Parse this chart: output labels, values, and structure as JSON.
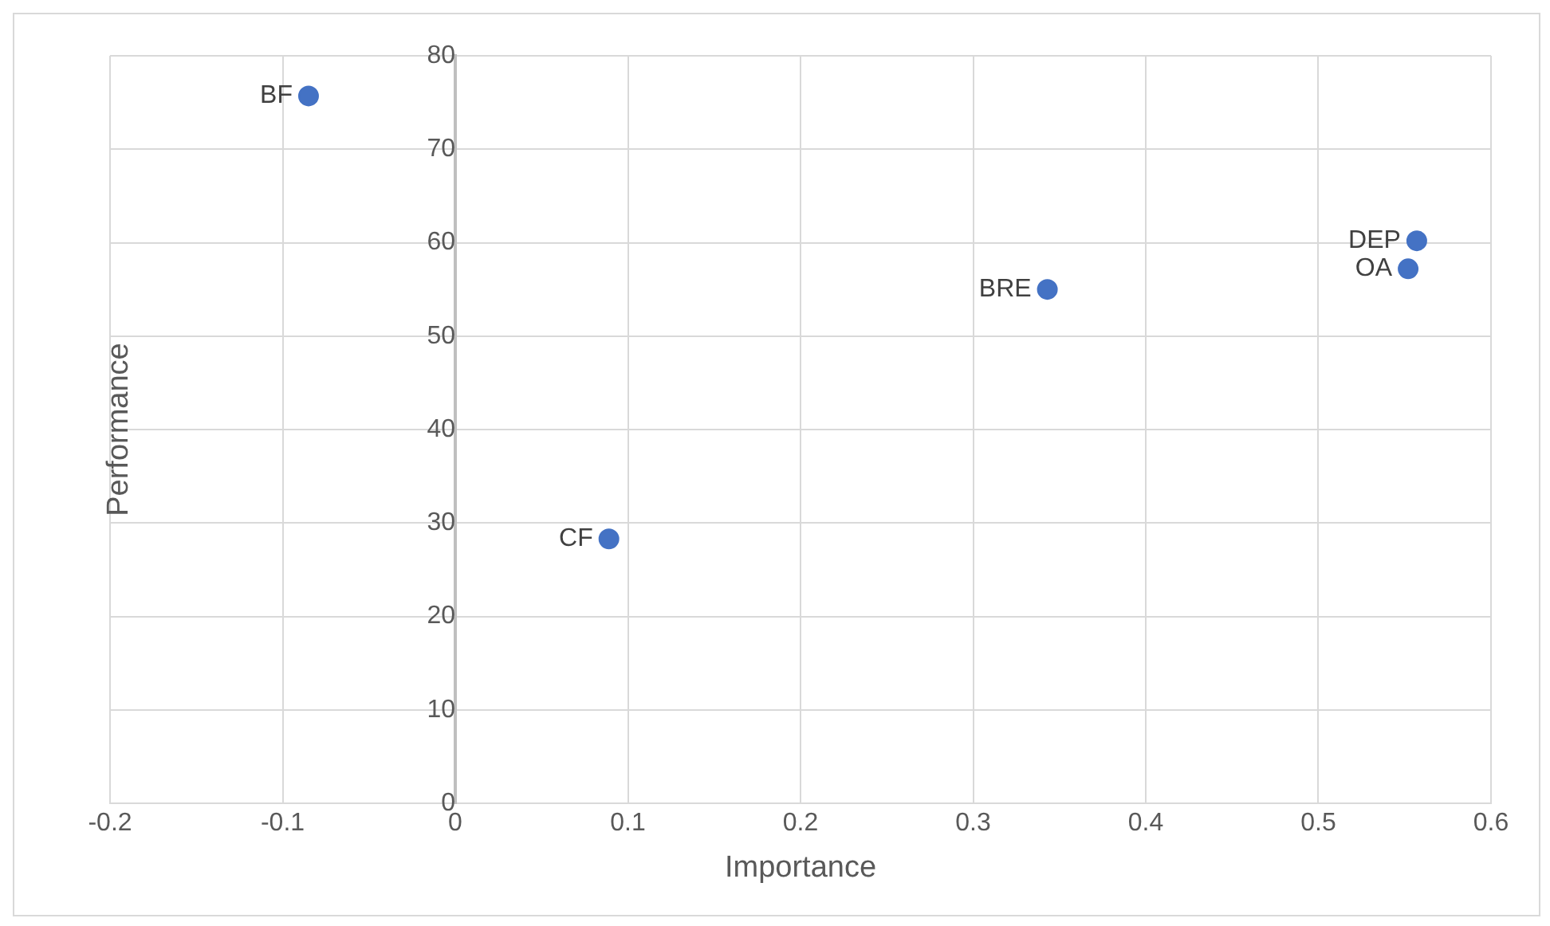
{
  "chart_data": {
    "type": "scatter",
    "xlabel": "Importance",
    "ylabel": "Performance",
    "x": [
      -0.085,
      0.089,
      0.343,
      0.557,
      0.552
    ],
    "series": [
      {
        "color": "#4472c4",
        "values": [
          75.7,
          28.3,
          55.0,
          60.2,
          57.2
        ]
      }
    ],
    "annotations": [
      {
        "text": "BF",
        "x": -0.085,
        "y": 75.7
      },
      {
        "text": "CF",
        "x": 0.089,
        "y": 28.3
      },
      {
        "text": "BRE",
        "x": 0.343,
        "y": 55.0
      },
      {
        "text": "DEP",
        "x": 0.557,
        "y": 60.2
      },
      {
        "text": "OA",
        "x": 0.552,
        "y": 57.2
      }
    ],
    "xlim": [
      -0.2,
      0.6
    ],
    "xticks": [
      -0.2,
      -0.1,
      0,
      0.1,
      0.2,
      0.3,
      0.4,
      0.5,
      0.6
    ],
    "ylim": [
      0,
      80
    ],
    "yticks": [
      0,
      10,
      20,
      30,
      40,
      50,
      60,
      70,
      80
    ],
    "grid": true,
    "legend": false,
    "marker": "circle"
  }
}
